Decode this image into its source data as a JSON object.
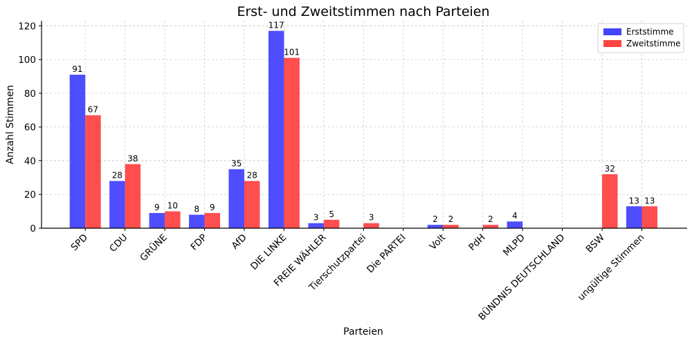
{
  "chart_data": {
    "type": "bar",
    "title": "Erst- und Zweitstimmen nach Parteien",
    "xlabel": "Parteien",
    "ylabel": "Anzahl Stimmen",
    "ylim": [
      0,
      123
    ],
    "yticks": [
      0,
      20,
      40,
      60,
      80,
      100,
      120
    ],
    "grid": true,
    "legend_position": "top-right",
    "categories": [
      "SPD",
      "CDU",
      "GRÜNE",
      "FDP",
      "AfD",
      "DIE LINKE",
      "FREIE WÄHLER",
      "Tierschutzpartei",
      "Die PARTEI",
      "Volt",
      "PdH",
      "MLPD",
      "BÜNDNIS DEUTSCHLAND",
      "BSW",
      "ungültige Stimmen"
    ],
    "series": [
      {
        "name": "Erststimme",
        "color": "#4444ff",
        "values": [
          91,
          28,
          9,
          8,
          35,
          117,
          3,
          0,
          0,
          2,
          0,
          4,
          0,
          0,
          13
        ],
        "labels": [
          "91",
          "28",
          "9",
          "8",
          "35",
          "117",
          "3",
          "",
          "",
          "2",
          "",
          "4",
          "",
          "",
          "13"
        ]
      },
      {
        "name": "Zweitstimme",
        "color": "#ff4444",
        "values": [
          67,
          38,
          10,
          9,
          28,
          101,
          5,
          3,
          0,
          2,
          2,
          0,
          0,
          32,
          13
        ],
        "labels": [
          "67",
          "38",
          "10",
          "9",
          "28",
          "101",
          "5",
          "3",
          "",
          "2",
          "2",
          "",
          "",
          "32",
          "13"
        ]
      }
    ]
  }
}
